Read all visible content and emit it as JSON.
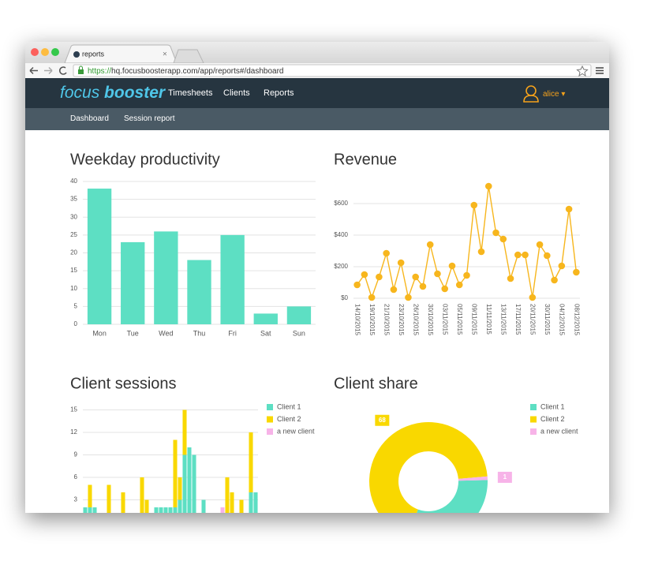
{
  "browser": {
    "tab_title": "reports",
    "url_scheme": "https://",
    "url_rest": "hq.focusboosterapp.com/app/reports#/dashboard"
  },
  "nav": {
    "brand_1": "focus",
    "brand_2": "booster",
    "items": [
      "Timesheets",
      "Clients",
      "Reports"
    ],
    "user": "alice"
  },
  "subnav": {
    "items": [
      "Dashboard",
      "Session report"
    ]
  },
  "chart_data": [
    {
      "type": "bar",
      "title": "Weekday productivity",
      "categories": [
        "Mon",
        "Tue",
        "Wed",
        "Thu",
        "Fri",
        "Sat",
        "Sun"
      ],
      "values": [
        38,
        23,
        26,
        18,
        25,
        3,
        5
      ],
      "color": "#5ddfc3",
      "ylim": [
        0,
        40
      ],
      "yticks": [
        0,
        5,
        10,
        15,
        20,
        25,
        30,
        35,
        40
      ],
      "grid": true
    },
    {
      "type": "line",
      "title": "Revenue",
      "categories": [
        "14/10/2015",
        null,
        "19/10/2015",
        null,
        "21/10/2015",
        null,
        "23/10/2015",
        null,
        "26/10/2015",
        null,
        "30/10/2015",
        null,
        "03/11/2015",
        null,
        "05/11/2015",
        null,
        "09/11/2015",
        null,
        "11/11/2015",
        null,
        "13/11/2015",
        null,
        "17/11/2015",
        null,
        "20/11/2015",
        null,
        "30/11/2015",
        null,
        "04/12/2015",
        null,
        "08/12/2015"
      ],
      "values": [
        85,
        150,
        5,
        135,
        285,
        55,
        225,
        5,
        135,
        75,
        340,
        155,
        60,
        205,
        85,
        145,
        590,
        295,
        710,
        415,
        375,
        125,
        275,
        275,
        5,
        340,
        270,
        115,
        205,
        565,
        165
      ],
      "color": "#f7b61d",
      "ylim": [
        0,
        750
      ],
      "yticks": [
        {
          "value": 0,
          "label": "$0"
        },
        {
          "value": 200,
          "label": "$200"
        },
        {
          "value": 400,
          "label": "$400"
        },
        {
          "value": 600,
          "label": "$600"
        }
      ],
      "grid": true
    },
    {
      "type": "bar",
      "title": "Client sessions",
      "stacked": true,
      "categories": [
        null,
        null,
        null,
        null,
        null,
        null,
        null,
        null,
        null,
        null,
        null,
        null,
        null,
        null,
        null,
        null,
        null,
        null,
        null,
        null,
        null,
        null,
        null,
        null,
        null,
        null,
        null,
        null,
        null,
        null,
        null,
        null,
        null,
        null,
        null,
        null,
        null
      ],
      "series": [
        {
          "name": "Client 1",
          "color": "#5ddfc3",
          "values": [
            2,
            2,
            2,
            0,
            0,
            0,
            0,
            0,
            0,
            0,
            0,
            0,
            0,
            0,
            0,
            2,
            2,
            2,
            2,
            2,
            3,
            9,
            10,
            9,
            0,
            3,
            0,
            0,
            0,
            0,
            0,
            0,
            0,
            0,
            0,
            4,
            4
          ]
        },
        {
          "name": "Client 2",
          "color": "#f9d800",
          "values": [
            0,
            3,
            0,
            0,
            0,
            5,
            0,
            0,
            4,
            0,
            0,
            0,
            6,
            3,
            0,
            0,
            0,
            0,
            0,
            9,
            3,
            6,
            0,
            0,
            0,
            0,
            0,
            0,
            0,
            0,
            6,
            4,
            0,
            3,
            0,
            8,
            0
          ]
        },
        {
          "name": "a new client",
          "color": "#f7b3e8",
          "values": [
            0,
            0,
            0,
            0,
            0,
            0,
            0,
            0,
            0,
            0,
            0,
            0,
            0,
            0,
            0,
            0,
            0,
            0,
            0,
            0,
            0,
            0,
            0,
            0,
            0,
            0,
            0,
            0,
            0,
            2,
            0,
            0,
            0,
            0,
            0,
            0,
            0
          ]
        }
      ],
      "ylim": [
        0,
        16
      ],
      "yticks": [
        0,
        3,
        6,
        9,
        12,
        15
      ],
      "grid": true
    },
    {
      "type": "pie",
      "title": "Client share",
      "donut": true,
      "categories": [
        "Client 1",
        "Client 2",
        "a new client"
      ],
      "values": [
        31,
        68,
        1
      ],
      "colors": [
        "#5ddfc3",
        "#f9d800",
        "#f7b3e8"
      ]
    }
  ]
}
